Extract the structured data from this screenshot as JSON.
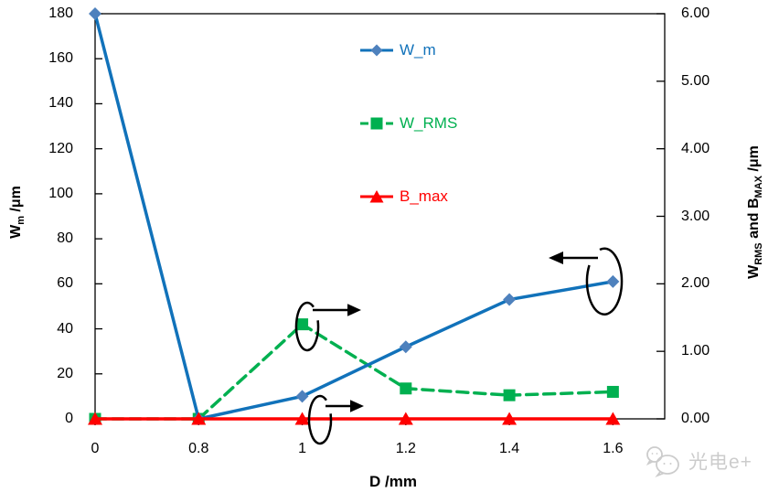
{
  "chart_data": {
    "type": "line",
    "title": "",
    "x_categories": [
      "0",
      "0.8",
      "1",
      "1.2",
      "1.4",
      "1.6"
    ],
    "x_axis": {
      "title": "D /mm",
      "title_parts": [
        {
          "text": "D /mm"
        }
      ]
    },
    "left_axis": {
      "title": "W_m /um",
      "title_parts": [
        {
          "text": "W"
        },
        {
          "text": "m",
          "sub": true
        },
        {
          "text": " /μm"
        }
      ],
      "min": 0,
      "max": 180,
      "ticks": [
        "0",
        "20",
        "40",
        "60",
        "80",
        "100",
        "120",
        "140",
        "160",
        "180"
      ]
    },
    "right_axis": {
      "title": "W_RMS and B_MAX /um",
      "title_parts": [
        {
          "text": "W"
        },
        {
          "text": "RMS",
          "sub": true
        },
        {
          "text": " and B"
        },
        {
          "text": "MAX",
          "sub": true
        },
        {
          "text": " /μm"
        }
      ],
      "min": 0,
      "max": 6,
      "ticks": [
        "0.00",
        "1.00",
        "2.00",
        "3.00",
        "4.00",
        "5.00",
        "6.00"
      ]
    },
    "grid": false,
    "legend_position": "inside-upper-middle-vertical",
    "series": [
      {
        "name": "W_m",
        "axis": "left",
        "marker": "diamond",
        "line_style": "solid",
        "color": "#1172BA",
        "marker_color": "#4E81BD",
        "values": [
          180,
          0,
          10,
          32,
          53,
          61
        ]
      },
      {
        "name": "W_RMS",
        "axis": "right",
        "marker": "square",
        "line_style": "dashed",
        "color": "#00B050",
        "marker_color": "#00B050",
        "values": [
          0,
          0,
          1.4,
          0.45,
          0.35,
          0.4
        ]
      },
      {
        "name": "B_max",
        "axis": "right",
        "marker": "triangle",
        "line_style": "solid",
        "color": "#FF0000",
        "marker_color": "#FF0000",
        "values": [
          0,
          0,
          0,
          0,
          0,
          0
        ]
      }
    ],
    "axis_arrows": [
      {
        "series": "W_m",
        "points_to": "left-axis"
      },
      {
        "series": "W_RMS",
        "points_to": "right-axis"
      },
      {
        "series": "B_max",
        "points_to": "right-axis"
      }
    ]
  },
  "watermark": {
    "text": "光电e+"
  }
}
